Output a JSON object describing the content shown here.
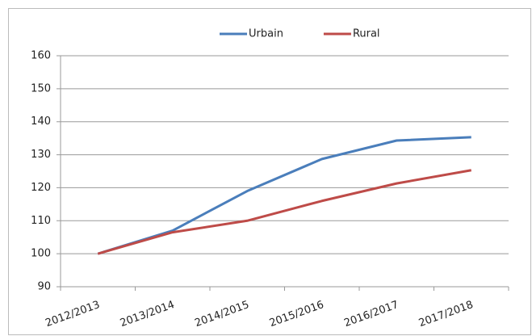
{
  "chart_data": {
    "type": "line",
    "categories": [
      "2012/2013",
      "2013/2014",
      "2014/2015",
      "2015/2016",
      "2016/2017",
      "2017/2018"
    ],
    "series": [
      {
        "name": "Urbain",
        "color": "#4a7ebb",
        "values": [
          100,
          107,
          119,
          128.7,
          134.3,
          135.3
        ]
      },
      {
        "name": "Rural",
        "color": "#be4b48",
        "values": [
          100,
          106.5,
          110,
          116,
          121.3,
          125.3
        ]
      }
    ],
    "ylim": [
      90,
      160
    ],
    "yticks": [
      90,
      100,
      110,
      120,
      130,
      140,
      150,
      160
    ],
    "grid": true,
    "legend": "top"
  }
}
